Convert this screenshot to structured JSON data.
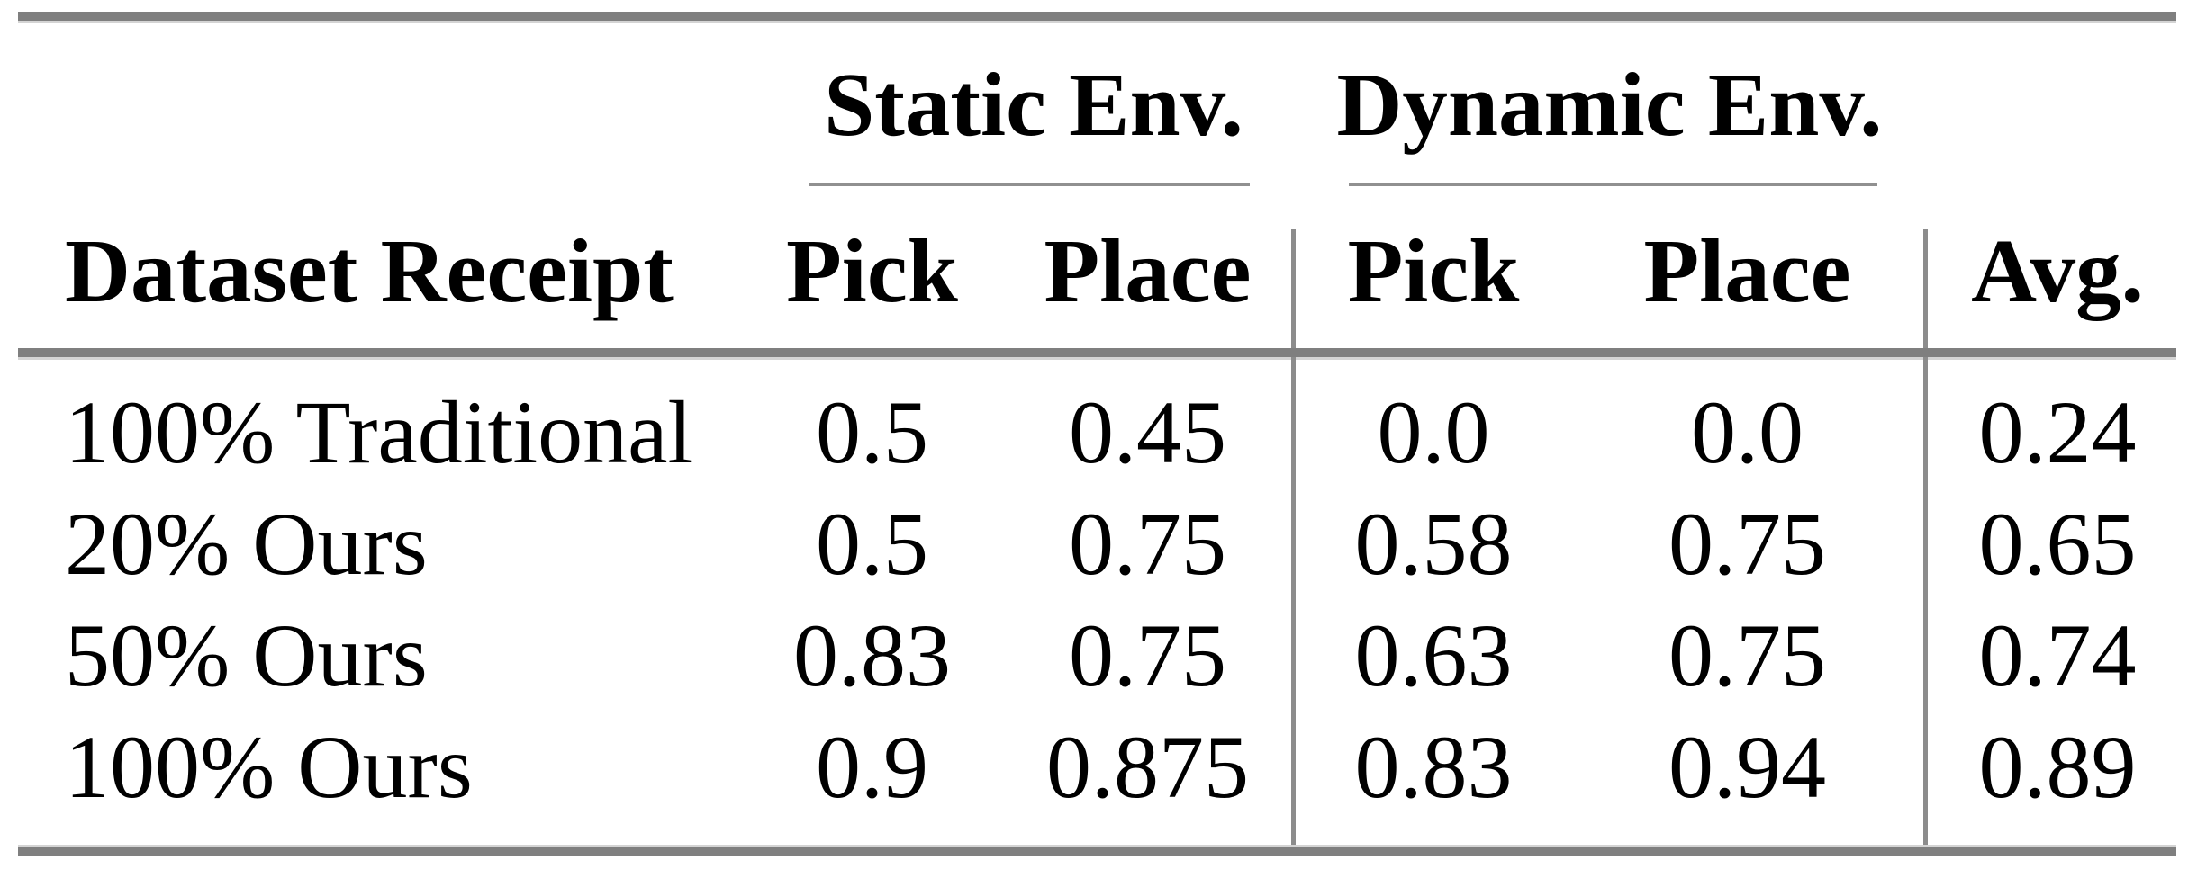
{
  "table": {
    "group_headers": [
      {
        "label": "Static Env."
      },
      {
        "label": "Dynamic Env."
      }
    ],
    "column_headers": {
      "dataset": "Dataset Receipt",
      "static_pick": "Pick",
      "static_place": "Place",
      "dynamic_pick": "Pick",
      "dynamic_place": "Place",
      "avg": "Avg."
    },
    "rows": [
      {
        "label": "100% Traditional",
        "static_pick": "0.5",
        "static_place": "0.45",
        "dynamic_pick": "0.0",
        "dynamic_place": "0.0",
        "avg": "0.24"
      },
      {
        "label": "20% Ours",
        "static_pick": "0.5",
        "static_place": "0.75",
        "dynamic_pick": "0.58",
        "dynamic_place": "0.75",
        "avg": "0.65"
      },
      {
        "label": "50% Ours",
        "static_pick": "0.83",
        "static_place": "0.75",
        "dynamic_pick": "0.63",
        "dynamic_place": "0.75",
        "avg": "0.74"
      },
      {
        "label": "100% Ours",
        "static_pick": "0.9",
        "static_place": "0.875",
        "dynamic_pick": "0.83",
        "dynamic_place": "0.94",
        "avg": "0.89"
      }
    ],
    "colors": {
      "rule_heavy": "#7f7f7f",
      "rule_light": "#909090",
      "vertical_rule": "#8c8c8c",
      "text": "#000000",
      "background": "#ffffff"
    }
  },
  "chart_data": {
    "type": "table",
    "columns": [
      "Dataset Receipt",
      "Static Env. Pick",
      "Static Env. Place",
      "Dynamic Env. Pick",
      "Dynamic Env. Place",
      "Avg."
    ],
    "rows": [
      [
        "100% Traditional",
        0.5,
        0.45,
        0.0,
        0.0,
        0.24
      ],
      [
        "20% Ours",
        0.5,
        0.75,
        0.58,
        0.75,
        0.65
      ],
      [
        "50% Ours",
        0.83,
        0.75,
        0.63,
        0.75,
        0.74
      ],
      [
        "100% Ours",
        0.9,
        0.875,
        0.83,
        0.94,
        0.89
      ]
    ]
  }
}
